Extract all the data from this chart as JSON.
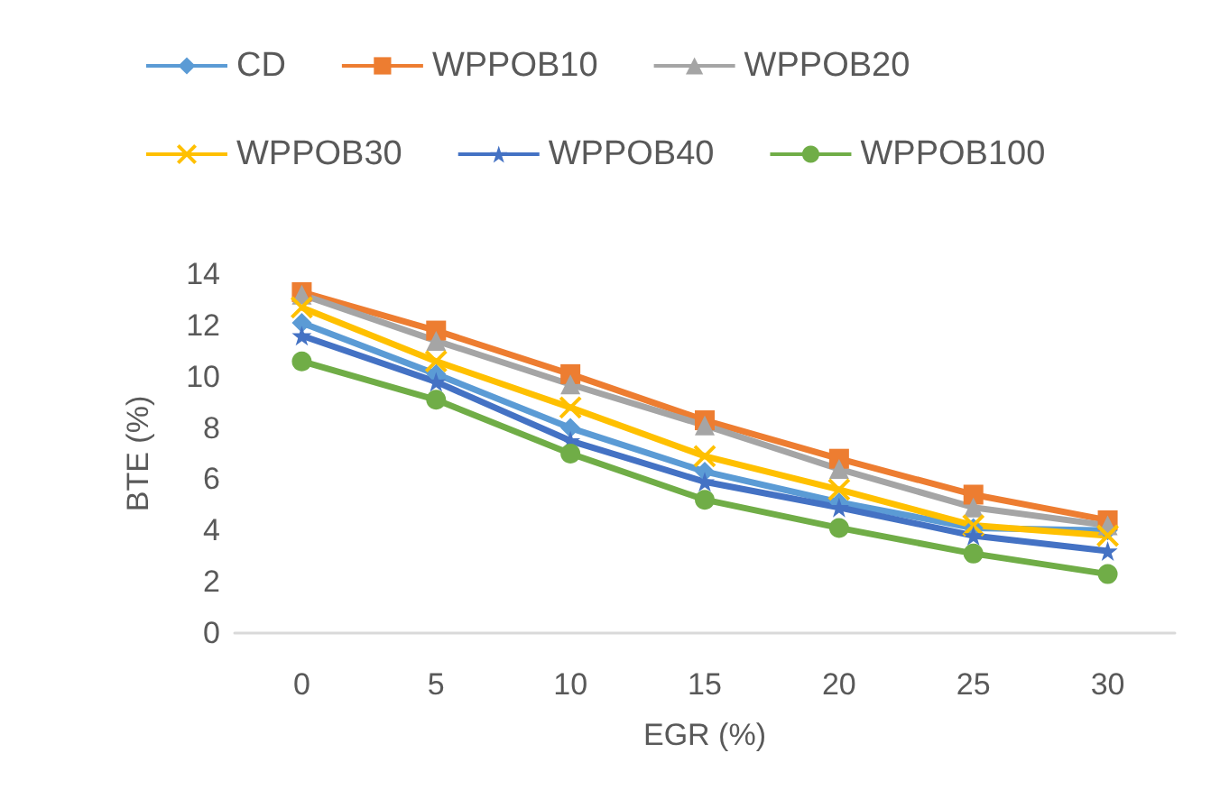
{
  "chart_data": {
    "type": "line",
    "xlabel": "EGR (%)",
    "ylabel": "BTE (%)",
    "categories": [
      "0",
      "5",
      "10",
      "15",
      "20",
      "25",
      "30"
    ],
    "ylim": [
      0,
      14
    ],
    "yticks": [
      0,
      2,
      4,
      6,
      8,
      10,
      12,
      14
    ],
    "grid": false,
    "legend": "top",
    "series": [
      {
        "name": "CD",
        "color": "#5b9bd5",
        "marker": "diamond",
        "values": [
          12.1,
          10.1,
          8.0,
          6.3,
          5.1,
          4.1,
          4.0
        ]
      },
      {
        "name": "WPPOB10",
        "color": "#ed7d31",
        "marker": "square",
        "values": [
          13.3,
          11.8,
          10.1,
          8.3,
          6.8,
          5.4,
          4.4
        ]
      },
      {
        "name": "WPPOB20",
        "color": "#a5a5a5",
        "marker": "triangle",
        "values": [
          13.2,
          11.4,
          9.7,
          8.1,
          6.4,
          4.9,
          4.2
        ]
      },
      {
        "name": "WPPOB30",
        "color": "#ffc000",
        "marker": "cross",
        "values": [
          12.7,
          10.6,
          8.8,
          6.9,
          5.6,
          4.2,
          3.8
        ]
      },
      {
        "name": "WPPOB40",
        "color": "#4472c4",
        "marker": "star",
        "values": [
          11.6,
          9.8,
          7.5,
          5.9,
          4.9,
          3.8,
          3.2
        ]
      },
      {
        "name": "WPPOB100",
        "color": "#70ad47",
        "marker": "circle",
        "values": [
          10.6,
          9.1,
          7.0,
          5.2,
          4.1,
          3.1,
          2.3
        ]
      }
    ]
  }
}
